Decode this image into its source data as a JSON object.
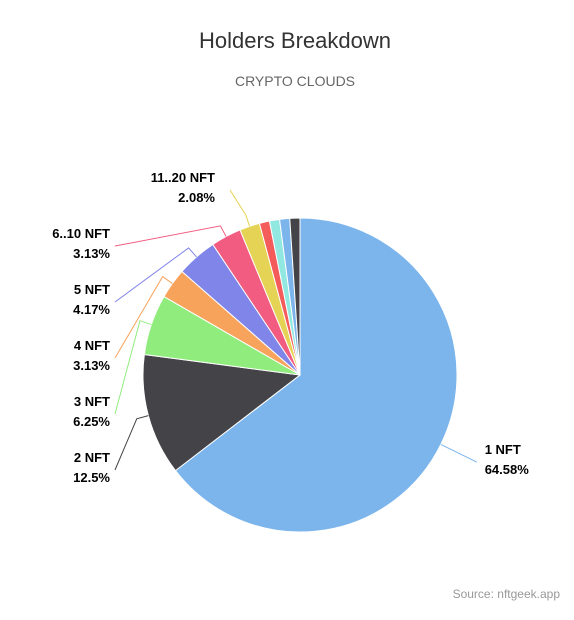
{
  "chart_data": {
    "type": "pie",
    "title": "Holders Breakdown",
    "subtitle": "CRYPTO CLOUDS",
    "categories": [
      "1 NFT",
      "2 NFT",
      "3 NFT",
      "4 NFT",
      "5 NFT",
      "6..10 NFT",
      "11..20 NFT",
      null,
      null,
      null,
      null
    ],
    "values": [
      64.58,
      12.5,
      6.25,
      3.13,
      4.17,
      3.13,
      2.08,
      1.04,
      1.04,
      1.04,
      1.04
    ],
    "value_labels": [
      "64.58%",
      "12.5%",
      "6.25%",
      "3.13%",
      "4.17%",
      "3.13%",
      "2.08%",
      null,
      null,
      null,
      null
    ],
    "colors": [
      "#7cb5ec",
      "#434348",
      "#90ed7d",
      "#f7a35c",
      "#8085e9",
      "#f15c80",
      "#e4d354",
      "#f45b5b",
      "#91e8e1",
      "#7cb5ec",
      "#434348"
    ],
    "source": "Source: nftgeek.app"
  }
}
